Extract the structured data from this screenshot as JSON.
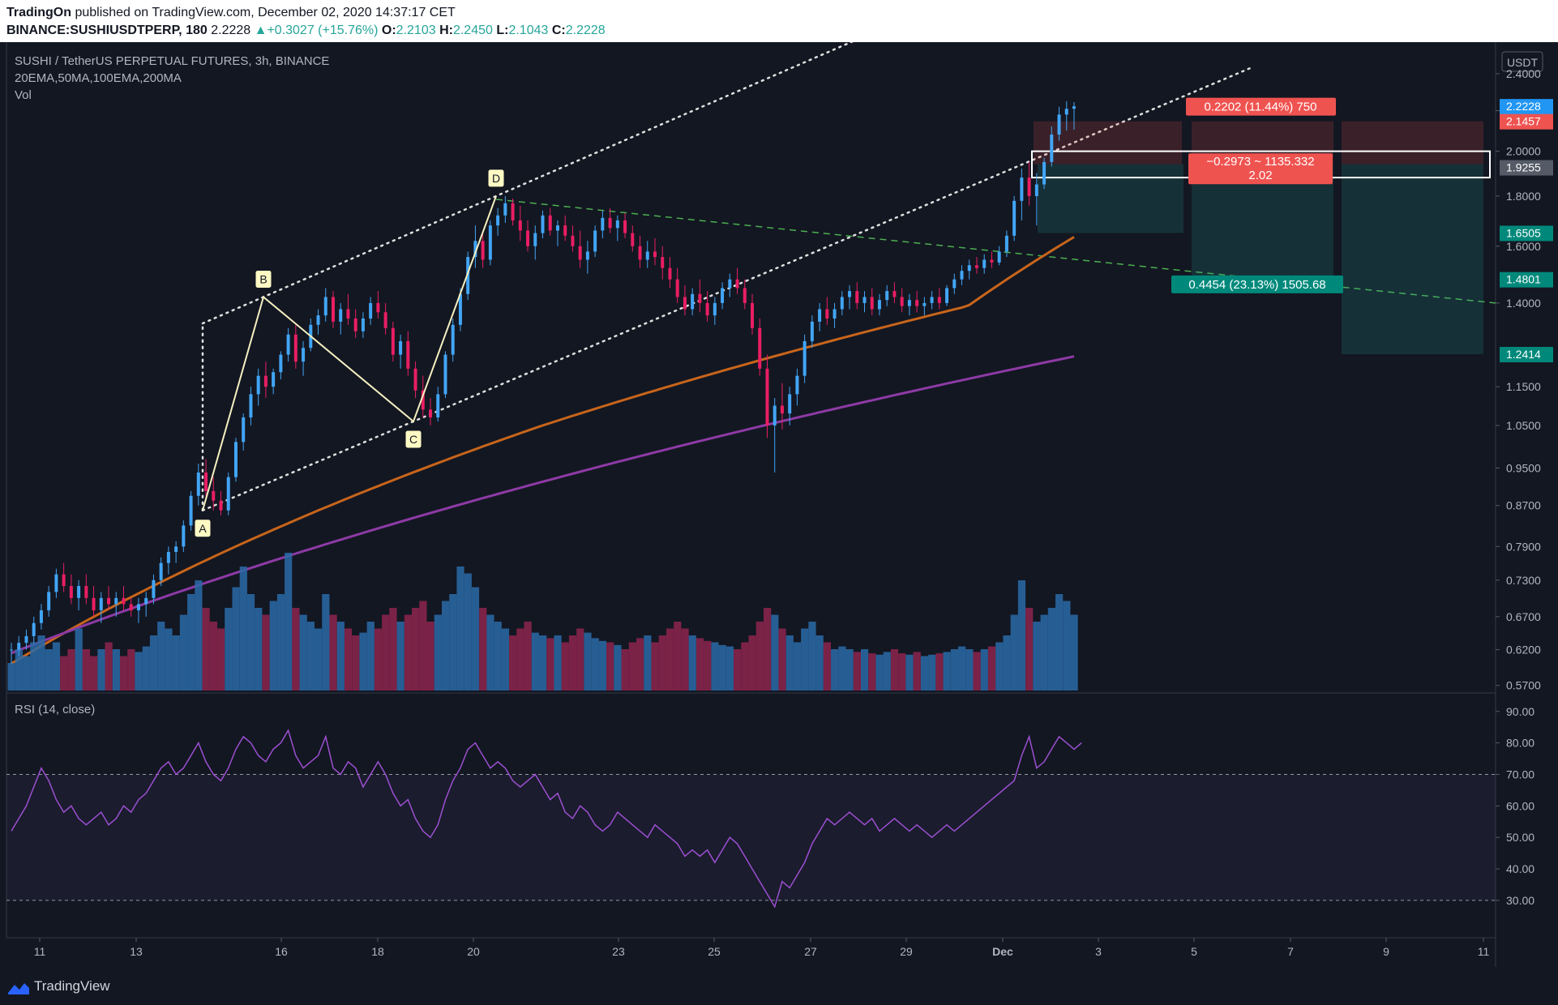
{
  "header": {
    "author": "TradingOn",
    "published": "published on TradingView.com, December 02, 2020 14:37:17 CET",
    "symbol": "BINANCE:SUSHIUSDTPERP, 180",
    "last": "2.2228",
    "change": "▲+0.3027 (+15.76%)",
    "o_label": "O:",
    "o": "2.2103",
    "h_label": "H:",
    "h": "2.2450",
    "l_label": "L:",
    "l": "2.1043",
    "c_label": "C:",
    "c": "2.2228"
  },
  "legend": {
    "title": "SUSHI / TetherUS PERPETUAL FUTURES, 3h, BINANCE",
    "indicators": "20EMA,50MA,100EMA,200MA",
    "volume": "Vol",
    "rsi": "RSI (14, close)"
  },
  "footer": {
    "brand": "TradingView"
  },
  "colors": {
    "background": "#131722",
    "up": "#26a69a",
    "down": "#ef5350",
    "candle_up": "#42a5f5",
    "candle_down": "#e91e63",
    "ma50": "#c8651b",
    "ma200": "#8e3aa6",
    "rsi": "#9c4fd1",
    "trendline": "#4caf50",
    "channel": "#e0e0e0"
  },
  "chart_data": {
    "type": "candlestick",
    "price_axis": {
      "unit": "USDT",
      "ticks": [
        "2.4000",
        "2.2000",
        "2.0000",
        "1.8000",
        "1.6000",
        "1.4000",
        "1.1500",
        "1.0500",
        "0.9500",
        "0.8700",
        "0.7900",
        "0.7300",
        "0.6700",
        "0.6200",
        "0.5700"
      ],
      "markers": [
        {
          "label": "2.2228",
          "color": "#2196f3",
          "value": 2.2228
        },
        {
          "label": "2.1457",
          "color": "#ef5350",
          "value": 2.1457
        },
        {
          "label": "1.9255",
          "color": "#555b66",
          "value": 1.9255
        },
        {
          "label": "1.6505",
          "color": "#00897b",
          "value": 1.6505
        },
        {
          "label": "1.4801",
          "color": "#00897b",
          "value": 1.4801
        },
        {
          "label": "1.2414",
          "color": "#00897b",
          "value": 1.2414
        }
      ],
      "scale": "log"
    },
    "time_axis": [
      "11",
      "13",
      "16",
      "18",
      "20",
      "23",
      "25",
      "27",
      "29",
      "Dec",
      "3",
      "5",
      "7",
      "9",
      "11"
    ],
    "pattern_points": [
      {
        "label": "A",
        "date": "Nov 14",
        "price": 0.86
      },
      {
        "label": "B",
        "date": "Nov 15",
        "price": 1.42
      },
      {
        "label": "C",
        "date": "Nov 18",
        "price": 1.06
      },
      {
        "label": "D",
        "date": "Nov 20",
        "price": 1.8
      }
    ],
    "positions": [
      {
        "label": "0.2202 (11.44%) 750",
        "type": "stop",
        "color": "#ef5350"
      },
      {
        "label_line1": "−0.2973 ~ 1135.332",
        "label_line2": "2.02",
        "type": "entry",
        "color": "#ef5350"
      },
      {
        "label": "0.4454 (23.13%) 1505.68",
        "type": "target",
        "color": "#00897b"
      }
    ],
    "rsi": {
      "ticks": [
        "90.00",
        "80.00",
        "70.00",
        "60.00",
        "50.00",
        "40.00",
        "30.00"
      ],
      "overbought": 70,
      "oversold": 30
    },
    "candles": [
      [
        0.62,
        0.63,
        0.6,
        0.62
      ],
      [
        0.62,
        0.64,
        0.61,
        0.63
      ],
      [
        0.63,
        0.65,
        0.62,
        0.64
      ],
      [
        0.64,
        0.67,
        0.63,
        0.66
      ],
      [
        0.66,
        0.69,
        0.65,
        0.68
      ],
      [
        0.68,
        0.72,
        0.67,
        0.71
      ],
      [
        0.71,
        0.75,
        0.7,
        0.74
      ],
      [
        0.74,
        0.76,
        0.71,
        0.72
      ],
      [
        0.72,
        0.74,
        0.69,
        0.7
      ],
      [
        0.7,
        0.73,
        0.68,
        0.72
      ],
      [
        0.72,
        0.74,
        0.69,
        0.7
      ],
      [
        0.7,
        0.72,
        0.67,
        0.68
      ],
      [
        0.68,
        0.71,
        0.66,
        0.7
      ],
      [
        0.7,
        0.72,
        0.68,
        0.69
      ],
      [
        0.69,
        0.71,
        0.67,
        0.7
      ],
      [
        0.7,
        0.72,
        0.68,
        0.69
      ],
      [
        0.69,
        0.7,
        0.67,
        0.68
      ],
      [
        0.68,
        0.7,
        0.66,
        0.69
      ],
      [
        0.69,
        0.71,
        0.67,
        0.7
      ],
      [
        0.7,
        0.74,
        0.69,
        0.73
      ],
      [
        0.73,
        0.77,
        0.72,
        0.76
      ],
      [
        0.76,
        0.79,
        0.74,
        0.78
      ],
      [
        0.78,
        0.8,
        0.76,
        0.79
      ],
      [
        0.79,
        0.84,
        0.78,
        0.83
      ],
      [
        0.83,
        0.9,
        0.82,
        0.89
      ],
      [
        0.89,
        0.96,
        0.87,
        0.94
      ],
      [
        0.94,
        0.97,
        0.88,
        0.9
      ],
      [
        0.9,
        0.93,
        0.86,
        0.88
      ],
      [
        0.88,
        0.9,
        0.85,
        0.86
      ],
      [
        0.86,
        0.94,
        0.85,
        0.93
      ],
      [
        0.93,
        1.02,
        0.92,
        1.01
      ],
      [
        1.01,
        1.08,
        0.99,
        1.07
      ],
      [
        1.07,
        1.15,
        1.05,
        1.13
      ],
      [
        1.13,
        1.2,
        1.1,
        1.18
      ],
      [
        1.18,
        1.22,
        1.12,
        1.15
      ],
      [
        1.15,
        1.2,
        1.13,
        1.19
      ],
      [
        1.19,
        1.25,
        1.17,
        1.24
      ],
      [
        1.24,
        1.32,
        1.22,
        1.3
      ],
      [
        1.3,
        1.33,
        1.2,
        1.22
      ],
      [
        1.22,
        1.28,
        1.18,
        1.26
      ],
      [
        1.26,
        1.35,
        1.25,
        1.33
      ],
      [
        1.33,
        1.38,
        1.3,
        1.36
      ],
      [
        1.36,
        1.45,
        1.34,
        1.42
      ],
      [
        1.42,
        1.44,
        1.32,
        1.34
      ],
      [
        1.34,
        1.4,
        1.3,
        1.38
      ],
      [
        1.38,
        1.43,
        1.33,
        1.35
      ],
      [
        1.35,
        1.38,
        1.29,
        1.31
      ],
      [
        1.31,
        1.37,
        1.29,
        1.35
      ],
      [
        1.35,
        1.42,
        1.33,
        1.4
      ],
      [
        1.4,
        1.44,
        1.35,
        1.37
      ],
      [
        1.37,
        1.4,
        1.3,
        1.32
      ],
      [
        1.32,
        1.34,
        1.22,
        1.24
      ],
      [
        1.24,
        1.3,
        1.2,
        1.28
      ],
      [
        1.28,
        1.31,
        1.18,
        1.2
      ],
      [
        1.2,
        1.22,
        1.12,
        1.14
      ],
      [
        1.14,
        1.18,
        1.07,
        1.09
      ],
      [
        1.09,
        1.12,
        1.05,
        1.07
      ],
      [
        1.07,
        1.15,
        1.06,
        1.13
      ],
      [
        1.13,
        1.25,
        1.12,
        1.24
      ],
      [
        1.24,
        1.35,
        1.22,
        1.33
      ],
      [
        1.33,
        1.45,
        1.31,
        1.43
      ],
      [
        1.43,
        1.58,
        1.41,
        1.56
      ],
      [
        1.56,
        1.68,
        1.52,
        1.62
      ],
      [
        1.62,
        1.66,
        1.52,
        1.55
      ],
      [
        1.55,
        1.7,
        1.53,
        1.68
      ],
      [
        1.68,
        1.75,
        1.64,
        1.72
      ],
      [
        1.72,
        1.8,
        1.69,
        1.77
      ],
      [
        1.77,
        1.79,
        1.68,
        1.7
      ],
      [
        1.7,
        1.76,
        1.62,
        1.66
      ],
      [
        1.66,
        1.7,
        1.58,
        1.6
      ],
      [
        1.6,
        1.68,
        1.55,
        1.65
      ],
      [
        1.65,
        1.74,
        1.63,
        1.72
      ],
      [
        1.72,
        1.75,
        1.64,
        1.66
      ],
      [
        1.66,
        1.7,
        1.6,
        1.68
      ],
      [
        1.68,
        1.72,
        1.62,
        1.64
      ],
      [
        1.64,
        1.68,
        1.58,
        1.6
      ],
      [
        1.6,
        1.66,
        1.52,
        1.55
      ],
      [
        1.55,
        1.62,
        1.5,
        1.58
      ],
      [
        1.58,
        1.68,
        1.56,
        1.66
      ],
      [
        1.66,
        1.74,
        1.63,
        1.71
      ],
      [
        1.71,
        1.75,
        1.65,
        1.67
      ],
      [
        1.67,
        1.72,
        1.62,
        1.7
      ],
      [
        1.7,
        1.73,
        1.63,
        1.65
      ],
      [
        1.65,
        1.68,
        1.58,
        1.6
      ],
      [
        1.6,
        1.64,
        1.52,
        1.55
      ],
      [
        1.55,
        1.62,
        1.52,
        1.58
      ],
      [
        1.58,
        1.63,
        1.53,
        1.56
      ],
      [
        1.56,
        1.6,
        1.48,
        1.52
      ],
      [
        1.52,
        1.56,
        1.45,
        1.48
      ],
      [
        1.48,
        1.52,
        1.4,
        1.42
      ],
      [
        1.42,
        1.46,
        1.36,
        1.38
      ],
      [
        1.38,
        1.45,
        1.36,
        1.43
      ],
      [
        1.43,
        1.48,
        1.37,
        1.4
      ],
      [
        1.4,
        1.44,
        1.34,
        1.36
      ],
      [
        1.36,
        1.42,
        1.33,
        1.4
      ],
      [
        1.4,
        1.47,
        1.38,
        1.45
      ],
      [
        1.45,
        1.5,
        1.42,
        1.48
      ],
      [
        1.48,
        1.52,
        1.43,
        1.45
      ],
      [
        1.45,
        1.48,
        1.38,
        1.4
      ],
      [
        1.4,
        1.43,
        1.3,
        1.32
      ],
      [
        1.32,
        1.35,
        1.18,
        1.2
      ],
      [
        1.2,
        1.24,
        1.02,
        1.05
      ],
      [
        1.05,
        1.12,
        0.94,
        1.1
      ],
      [
        1.1,
        1.16,
        1.04,
        1.08
      ],
      [
        1.08,
        1.15,
        1.05,
        1.13
      ],
      [
        1.13,
        1.2,
        1.1,
        1.18
      ],
      [
        1.18,
        1.3,
        1.16,
        1.28
      ],
      [
        1.28,
        1.36,
        1.26,
        1.34
      ],
      [
        1.34,
        1.4,
        1.31,
        1.38
      ],
      [
        1.38,
        1.42,
        1.33,
        1.35
      ],
      [
        1.35,
        1.4,
        1.32,
        1.38
      ],
      [
        1.38,
        1.44,
        1.36,
        1.42
      ],
      [
        1.42,
        1.46,
        1.38,
        1.44
      ],
      [
        1.44,
        1.47,
        1.38,
        1.4
      ],
      [
        1.4,
        1.44,
        1.37,
        1.42
      ],
      [
        1.42,
        1.45,
        1.36,
        1.38
      ],
      [
        1.38,
        1.43,
        1.36,
        1.41
      ],
      [
        1.41,
        1.46,
        1.39,
        1.44
      ],
      [
        1.44,
        1.47,
        1.4,
        1.42
      ],
      [
        1.42,
        1.45,
        1.37,
        1.39
      ],
      [
        1.39,
        1.43,
        1.36,
        1.41
      ],
      [
        1.41,
        1.44,
        1.37,
        1.39
      ],
      [
        1.39,
        1.42,
        1.36,
        1.4
      ],
      [
        1.4,
        1.44,
        1.38,
        1.42
      ],
      [
        1.42,
        1.45,
        1.38,
        1.4
      ],
      [
        1.4,
        1.46,
        1.39,
        1.45
      ],
      [
        1.45,
        1.5,
        1.43,
        1.48
      ],
      [
        1.48,
        1.53,
        1.46,
        1.51
      ],
      [
        1.51,
        1.55,
        1.48,
        1.53
      ],
      [
        1.53,
        1.56,
        1.5,
        1.52
      ],
      [
        1.52,
        1.57,
        1.5,
        1.55
      ],
      [
        1.55,
        1.58,
        1.52,
        1.54
      ],
      [
        1.54,
        1.6,
        1.53,
        1.58
      ],
      [
        1.58,
        1.66,
        1.56,
        1.64
      ],
      [
        1.64,
        1.8,
        1.62,
        1.78
      ],
      [
        1.78,
        1.92,
        1.7,
        1.88
      ],
      [
        1.88,
        1.95,
        1.76,
        1.8
      ],
      [
        1.8,
        1.9,
        1.68,
        1.85
      ],
      [
        1.85,
        1.97,
        1.83,
        1.95
      ],
      [
        1.95,
        2.12,
        1.93,
        2.08
      ],
      [
        2.08,
        2.22,
        2.05,
        2.18
      ],
      [
        2.18,
        2.25,
        2.1,
        2.21
      ],
      [
        2.21,
        2.245,
        2.104,
        2.2228
      ]
    ],
    "volume": [
      0.2,
      0.3,
      0.25,
      0.35,
      0.4,
      0.3,
      0.35,
      0.25,
      0.3,
      0.45,
      0.3,
      0.25,
      0.3,
      0.35,
      0.3,
      0.25,
      0.3,
      0.28,
      0.32,
      0.4,
      0.5,
      0.45,
      0.4,
      0.55,
      0.7,
      0.8,
      0.6,
      0.5,
      0.45,
      0.6,
      0.75,
      0.9,
      0.7,
      0.6,
      0.55,
      0.65,
      0.7,
      1.0,
      0.6,
      0.55,
      0.5,
      0.45,
      0.7,
      0.55,
      0.5,
      0.45,
      0.4,
      0.42,
      0.5,
      0.45,
      0.55,
      0.6,
      0.5,
      0.55,
      0.6,
      0.65,
      0.5,
      0.55,
      0.65,
      0.7,
      0.9,
      0.85,
      0.75,
      0.6,
      0.55,
      0.5,
      0.45,
      0.4,
      0.45,
      0.5,
      0.42,
      0.4,
      0.38,
      0.4,
      0.35,
      0.4,
      0.45,
      0.42,
      0.38,
      0.36,
      0.35,
      0.33,
      0.3,
      0.35,
      0.38,
      0.4,
      0.35,
      0.4,
      0.45,
      0.5,
      0.45,
      0.4,
      0.38,
      0.36,
      0.35,
      0.33,
      0.32,
      0.3,
      0.35,
      0.4,
      0.5,
      0.6,
      0.55,
      0.45,
      0.4,
      0.35,
      0.45,
      0.5,
      0.4,
      0.35,
      0.3,
      0.32,
      0.3,
      0.28,
      0.3,
      0.27,
      0.26,
      0.28,
      0.3,
      0.27,
      0.26,
      0.28,
      0.25,
      0.26,
      0.27,
      0.28,
      0.3,
      0.32,
      0.3,
      0.28,
      0.3,
      0.32,
      0.35,
      0.4,
      0.55,
      0.8,
      0.6,
      0.5,
      0.55,
      0.6,
      0.7,
      0.65,
      0.55
    ],
    "rsi_values": [
      52,
      56,
      60,
      66,
      72,
      68,
      62,
      58,
      60,
      56,
      54,
      56,
      58,
      54,
      56,
      60,
      58,
      62,
      64,
      68,
      72,
      74,
      70,
      72,
      76,
      80,
      74,
      70,
      68,
      72,
      78,
      82,
      80,
      76,
      74,
      78,
      80,
      84,
      76,
      72,
      74,
      76,
      82,
      72,
      70,
      74,
      72,
      66,
      70,
      74,
      70,
      64,
      60,
      62,
      56,
      52,
      50,
      54,
      62,
      68,
      72,
      78,
      80,
      76,
      72,
      74,
      72,
      68,
      66,
      68,
      70,
      66,
      62,
      64,
      58,
      56,
      60,
      58,
      54,
      52,
      54,
      58,
      56,
      54,
      52,
      50,
      54,
      52,
      50,
      48,
      44,
      46,
      44,
      46,
      42,
      46,
      50,
      48,
      44,
      40,
      36,
      32,
      28,
      36,
      34,
      38,
      42,
      48,
      52,
      56,
      54,
      56,
      58,
      56,
      54,
      56,
      52,
      54,
      56,
      54,
      52,
      54,
      52,
      50,
      52,
      54,
      52,
      54,
      56,
      58,
      60,
      62,
      64,
      66,
      68,
      76,
      82,
      72,
      74,
      78,
      82,
      80,
      78,
      80
    ]
  }
}
